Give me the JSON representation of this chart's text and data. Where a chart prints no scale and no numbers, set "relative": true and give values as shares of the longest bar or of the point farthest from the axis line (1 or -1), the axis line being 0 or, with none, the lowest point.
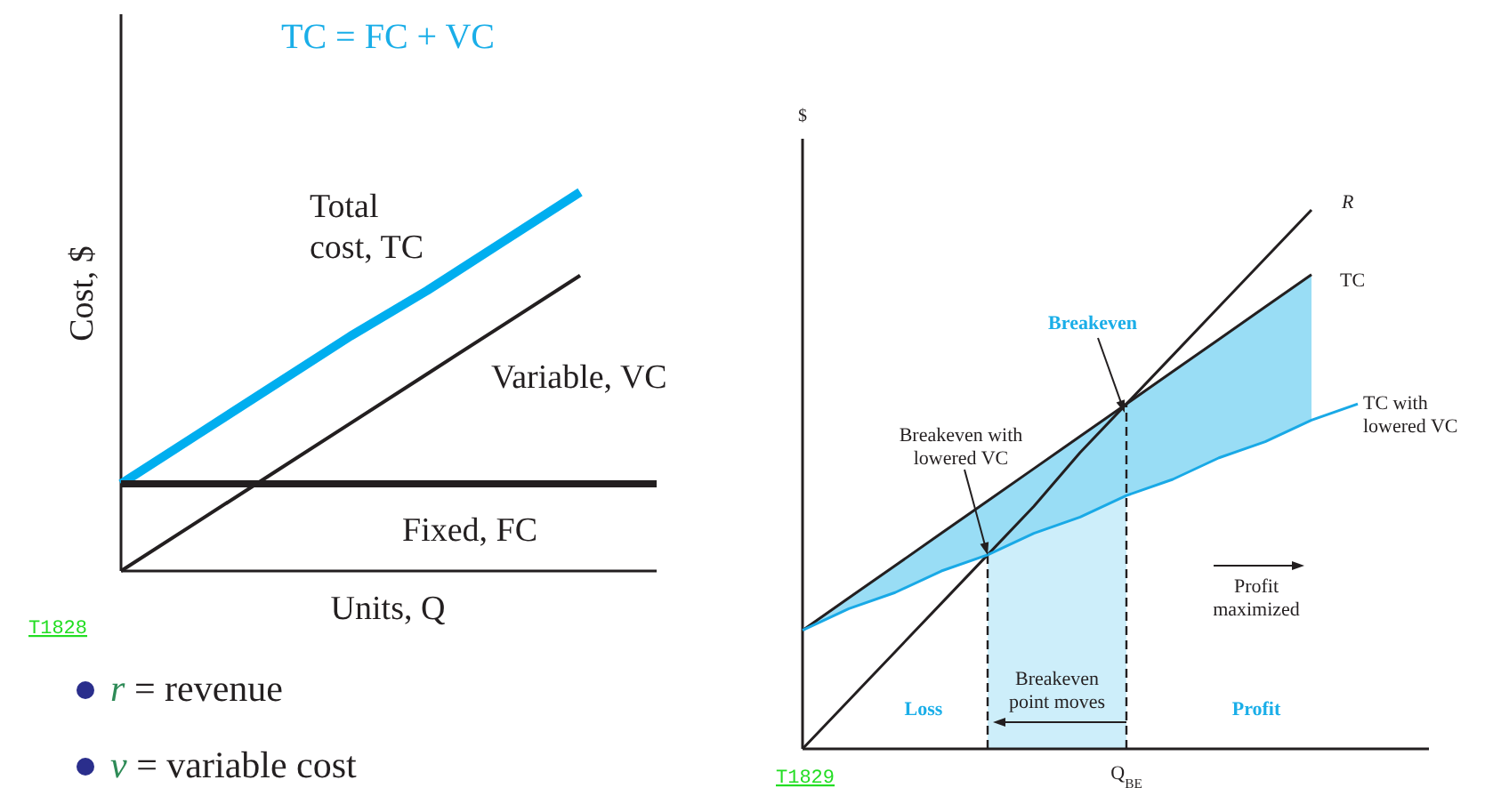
{
  "chart_data": [
    {
      "type": "line",
      "title": "TC = FC + VC",
      "xlabel": "Units, Q",
      "ylabel": "Cost, $",
      "relative": true,
      "categories": [
        null,
        null,
        null,
        null,
        null,
        null,
        null,
        null
      ],
      "series": [
        {
          "name": "Total cost, TC",
          "color": "#00aeef",
          "values": [
            0.23,
            0.36,
            0.49,
            0.62,
            0.74,
            0.87,
            1.0,
            null
          ]
        },
        {
          "name": "Variable, VC",
          "color": "#231f20",
          "values": [
            0,
            0.13,
            0.26,
            0.39,
            0.52,
            0.65,
            0.78,
            null
          ]
        },
        {
          "name": "Fixed, FC",
          "color": "#231f20",
          "values": [
            0.23,
            0.23,
            0.23,
            0.23,
            0.23,
            0.23,
            0.23,
            0.23
          ]
        }
      ],
      "annotations": [
        "T1828",
        "r = revenue",
        "v = variable cost"
      ]
    },
    {
      "type": "line",
      "ylabel": "$",
      "relative": true,
      "categories": [
        null,
        null,
        null,
        null,
        null,
        null,
        null,
        null,
        null,
        null,
        null,
        null,
        null,
        null
      ],
      "series": [
        {
          "name": "R",
          "color": "#231f20",
          "values": [
            0,
            0.09,
            0.18,
            0.27,
            0.36,
            0.45,
            0.55,
            0.64,
            0.73,
            0.82,
            0.91,
            1.0,
            null,
            null
          ]
        },
        {
          "name": "TC",
          "color": "#231f20",
          "values": [
            0.22,
            0.28,
            0.34,
            0.4,
            0.46,
            0.52,
            0.58,
            0.64,
            0.7,
            0.76,
            0.82,
            0.88,
            null,
            null
          ]
        },
        {
          "name": "TC with lowered VC",
          "color": "#19a9e6",
          "values": [
            0.22,
            0.26,
            0.29,
            0.33,
            0.36,
            0.4,
            0.43,
            0.47,
            0.5,
            0.54,
            0.57,
            0.61,
            0.64,
            null
          ],
          "lower": [
            0.22,
            0.26,
            0.29,
            0.33,
            0.36,
            0.4,
            0.43,
            0.47,
            0.5,
            0.54,
            0.57,
            0.61,
            null,
            null
          ],
          "upper": [
            0.22,
            0.28,
            0.34,
            0.4,
            0.46,
            0.52,
            0.58,
            0.64,
            0.7,
            0.76,
            0.82,
            0.88,
            null,
            null
          ]
        }
      ],
      "annotations": [
        "Breakeven",
        "Breakeven with lowered VC",
        "Profit maximized",
        "Breakeven point moves",
        "Loss",
        "Profit",
        "T1829",
        "Q$_{BE}$"
      ]
    }
  ]
}
